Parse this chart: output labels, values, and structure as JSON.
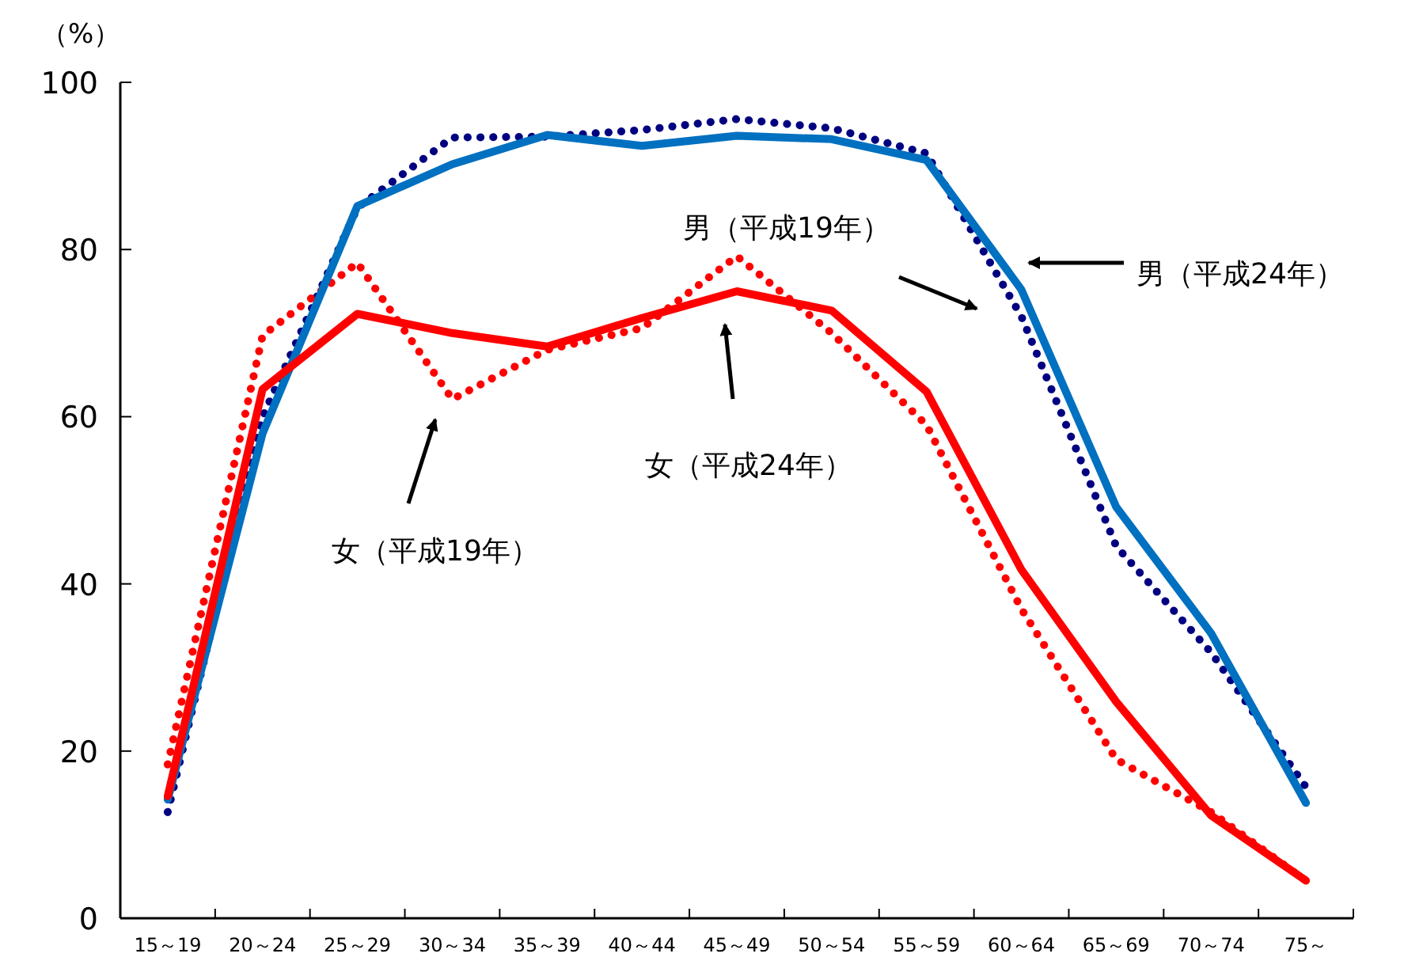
{
  "chart_data": {
    "type": "line",
    "ylabel": "（%）",
    "categories": [
      "15～19",
      "20～24",
      "25～29",
      "30～34",
      "35～39",
      "40～44",
      "45～49",
      "50～54",
      "55～59",
      "60～64",
      "65～69",
      "70～74",
      "75～"
    ],
    "ylim": [
      0,
      100
    ],
    "yticks": [
      0,
      20,
      40,
      60,
      80,
      100
    ],
    "grid": false,
    "marker": "none",
    "series": [
      {
        "color": "#000080",
        "line_style": "dotted",
        "values": [
          12.7,
          60,
          85,
          93.4,
          93.5,
          94.3,
          95.6,
          94.5,
          91.5,
          72,
          44.5,
          31.8,
          15.7
        ]
      },
      {
        "color": "#ff0000",
        "line_style": "dotted",
        "values": [
          18.4,
          69.7,
          78.4,
          62.1,
          68,
          70.6,
          79.2,
          70,
          59,
          37,
          19,
          12.7,
          4.5
        ]
      },
      {
        "color": "#0070c0",
        "line_style": "solid",
        "values": [
          14.2,
          58,
          85.2,
          90.2,
          93.7,
          92.4,
          93.6,
          93.2,
          90.7,
          75.2,
          49.2,
          34.1,
          13.8
        ]
      },
      {
        "color": "#ff0000",
        "line_style": "solid",
        "values": [
          14.6,
          63.3,
          72.3,
          70,
          68.4,
          71.8,
          75,
          72.7,
          63,
          41.7,
          25.9,
          12.3,
          4.5
        ]
      }
    ],
    "annotations": [
      "女（平成19年）",
      "女（平成24年）",
      "男（平成19年）",
      "男（平成24年）"
    ]
  }
}
